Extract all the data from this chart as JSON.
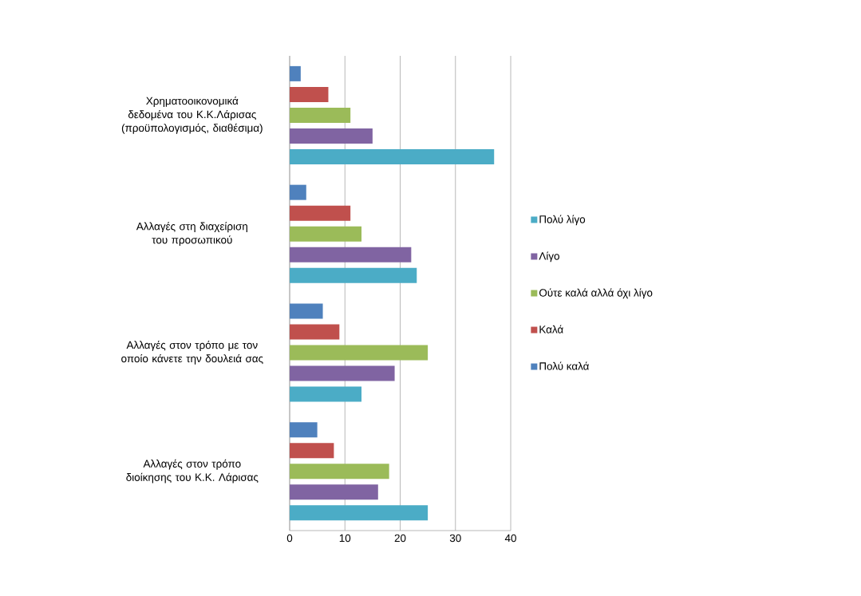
{
  "chart_data": {
    "type": "bar",
    "orientation": "horizontal",
    "categories": [
      "Χρηματοοικονομικά δεδομένα του Κ.Κ.Λάρισας (προϋπολογισμός, διαθέσιμα)",
      "Αλλαγές στη διαχείριση του προσωπικού",
      "Αλλαγές στον τρόπο με τον οποίο κάνετε την δουλειά σας",
      "Αλλαγές στον τρόπο διοίκησης του Κ.Κ. Λάρισας"
    ],
    "series": [
      {
        "name": "Πολύ λίγο",
        "color": "#4bacc6",
        "values": [
          37,
          23,
          13,
          25
        ]
      },
      {
        "name": "Λίγο",
        "color": "#8064a2",
        "values": [
          15,
          22,
          19,
          16
        ]
      },
      {
        "name": "Ούτε καλά αλλά όχι λίγο",
        "color": "#9bbb59",
        "values": [
          11,
          13,
          25,
          18
        ]
      },
      {
        "name": "Καλά",
        "color": "#c0504d",
        "values": [
          7,
          11,
          9,
          8
        ]
      },
      {
        "name": "Πολύ καλά",
        "color": "#4f81bd",
        "values": [
          2,
          3,
          6,
          5
        ]
      }
    ],
    "xlim": [
      0,
      40
    ],
    "xticks": [
      0,
      10,
      20,
      30,
      40
    ],
    "grid": "x",
    "legend": "right"
  }
}
